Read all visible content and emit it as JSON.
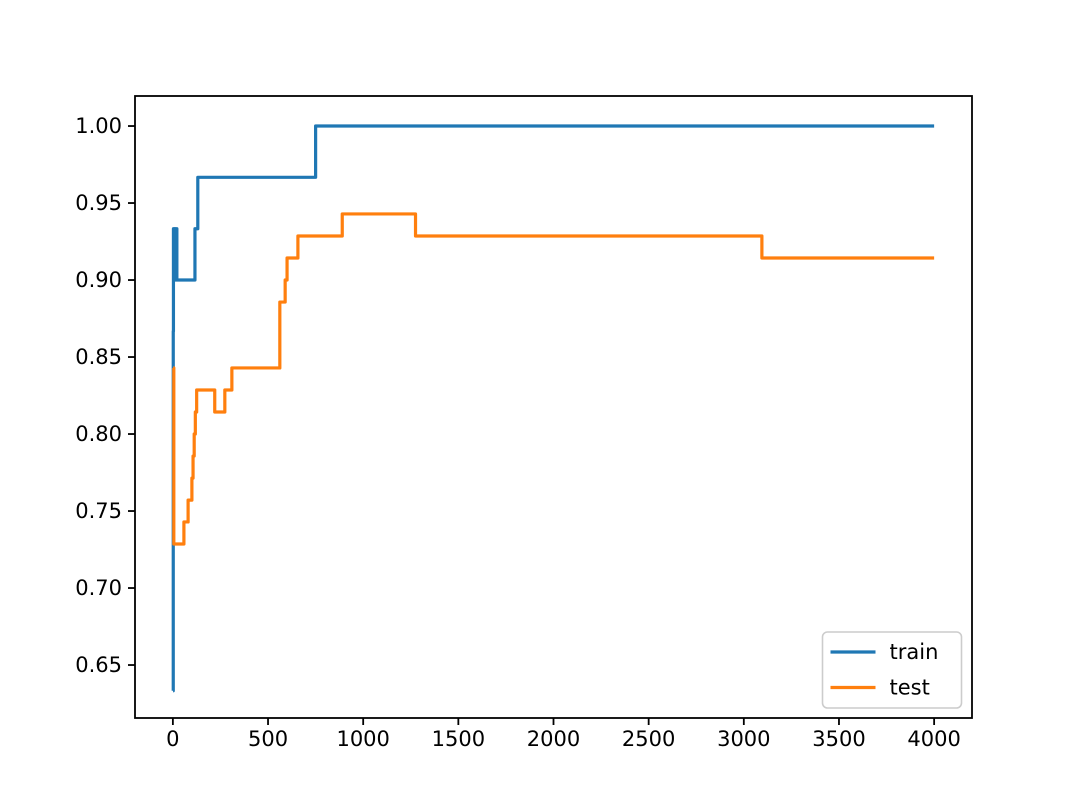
{
  "figure": {
    "background": "#ffffff",
    "title": ""
  },
  "chart_data": {
    "type": "line",
    "step_style": "post",
    "title": "",
    "xlabel": "",
    "ylabel": "",
    "grid": false,
    "xlim": [
      -199,
      4199
    ],
    "ylim": [
      0.6156,
      1.0195
    ],
    "x_ticks": [
      0,
      500,
      1000,
      1500,
      2000,
      2500,
      3000,
      3500,
      4000
    ],
    "x_tick_labels": [
      "0",
      "500",
      "1000",
      "1500",
      "2000",
      "2500",
      "3000",
      "3500",
      "4000"
    ],
    "y_ticks": [
      0.65,
      0.7,
      0.75,
      0.8,
      0.85,
      0.9,
      0.95,
      1.0
    ],
    "y_tick_labels": [
      "0.65",
      "0.70",
      "0.75",
      "0.80",
      "0.85",
      "0.90",
      "0.95",
      "1.00"
    ],
    "axis_color": "#000000",
    "tick_label_color": "#000000",
    "legend": {
      "position": "lower right",
      "entries": [
        "train",
        "test"
      ],
      "border_color": "#cccccc",
      "background": "#ffffff"
    },
    "series": [
      {
        "name": "train",
        "color": "#1f77b4",
        "points": [
          [
            1,
            0.6333
          ],
          [
            2,
            0.8667
          ],
          [
            3,
            0.9333
          ],
          [
            5,
            0.9
          ],
          [
            7,
            0.9333
          ],
          [
            9,
            0.9
          ],
          [
            11,
            0.9333
          ],
          [
            13,
            0.9
          ],
          [
            15,
            0.9333
          ],
          [
            21,
            0.9
          ],
          [
            116,
            0.9333
          ],
          [
            131,
            0.9667
          ],
          [
            750,
            1.0
          ],
          [
            4000,
            1.0
          ]
        ]
      },
      {
        "name": "test",
        "color": "#ff7f0e",
        "points": [
          [
            1,
            0.8429
          ],
          [
            5,
            0.7286
          ],
          [
            58,
            0.7429
          ],
          [
            80,
            0.7571
          ],
          [
            100,
            0.7714
          ],
          [
            106,
            0.7857
          ],
          [
            112,
            0.8
          ],
          [
            118,
            0.8143
          ],
          [
            125,
            0.8286
          ],
          [
            220,
            0.8143
          ],
          [
            273,
            0.8286
          ],
          [
            310,
            0.8429
          ],
          [
            562,
            0.8857
          ],
          [
            590,
            0.9
          ],
          [
            600,
            0.9143
          ],
          [
            657,
            0.9286
          ],
          [
            890,
            0.9429
          ],
          [
            1275,
            0.9286
          ],
          [
            3095,
            0.9143
          ],
          [
            4000,
            0.9143
          ]
        ]
      }
    ]
  }
}
